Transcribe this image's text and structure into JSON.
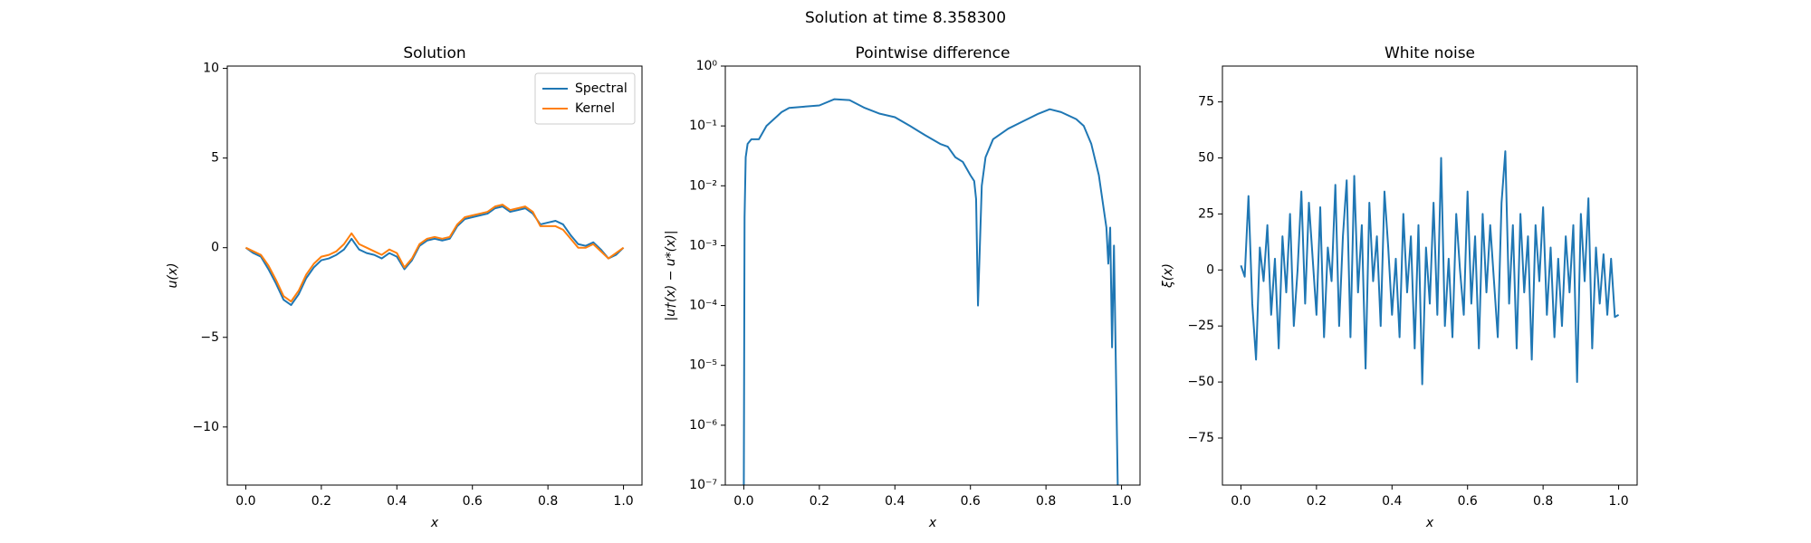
{
  "title": "Solution at time 8.358300",
  "chart_data": [
    {
      "type": "line",
      "title": "Solution",
      "xlabel": "x",
      "ylabel": "u(x)",
      "x": [
        0,
        0.02,
        0.04,
        0.06,
        0.08,
        0.1,
        0.12,
        0.14,
        0.16,
        0.18,
        0.2,
        0.22,
        0.24,
        0.26,
        0.28,
        0.3,
        0.32,
        0.34,
        0.36,
        0.38,
        0.4,
        0.42,
        0.44,
        0.46,
        0.48,
        0.5,
        0.52,
        0.54,
        0.56,
        0.58,
        0.6,
        0.62,
        0.64,
        0.66,
        0.68,
        0.7,
        0.72,
        0.74,
        0.76,
        0.78,
        0.8,
        0.82,
        0.84,
        0.86,
        0.88,
        0.9,
        0.92,
        0.94,
        0.96,
        0.98,
        1.0
      ],
      "series": [
        {
          "name": "Spectral",
          "color": "#1f77b4",
          "values": [
            0,
            -0.3,
            -0.5,
            -1.2,
            -2.0,
            -2.9,
            -3.2,
            -2.6,
            -1.7,
            -1.1,
            -0.7,
            -0.6,
            -0.4,
            -0.1,
            0.5,
            -0.1,
            -0.3,
            -0.4,
            -0.6,
            -0.3,
            -0.5,
            -1.2,
            -0.7,
            0.1,
            0.4,
            0.5,
            0.4,
            0.5,
            1.2,
            1.6,
            1.7,
            1.8,
            1.9,
            2.2,
            2.3,
            2.0,
            2.1,
            2.2,
            1.9,
            1.3,
            1.4,
            1.5,
            1.3,
            0.7,
            0.2,
            0.1,
            0.3,
            -0.1,
            -0.6,
            -0.4,
            0.0
          ]
        },
        {
          "name": "Kernel",
          "color": "#ff7f0e",
          "values": [
            0,
            -0.2,
            -0.4,
            -1.0,
            -1.8,
            -2.7,
            -3.0,
            -2.4,
            -1.5,
            -0.9,
            -0.5,
            -0.4,
            -0.2,
            0.2,
            0.8,
            0.2,
            0.0,
            -0.2,
            -0.4,
            -0.1,
            -0.3,
            -1.1,
            -0.6,
            0.2,
            0.5,
            0.6,
            0.5,
            0.6,
            1.3,
            1.7,
            1.8,
            1.9,
            2.0,
            2.3,
            2.4,
            2.1,
            2.2,
            2.3,
            2.0,
            1.2,
            1.2,
            1.2,
            1.0,
            0.5,
            0.0,
            0.0,
            0.2,
            -0.2,
            -0.6,
            -0.3,
            0.0
          ]
        }
      ],
      "xlim": [
        -0.049,
        1.049
      ],
      "ylim": [
        -13.24,
        10.13
      ],
      "xticks": [
        {
          "value": 0,
          "label": "0.0"
        },
        {
          "value": 0.2,
          "label": "0.2"
        },
        {
          "value": 0.4,
          "label": "0.4"
        },
        {
          "value": 0.6,
          "label": "0.6"
        },
        {
          "value": 0.8,
          "label": "0.8"
        },
        {
          "value": 1,
          "label": "1.0"
        }
      ],
      "yticks": [
        {
          "value": -10,
          "label": "−10"
        },
        {
          "value": -5,
          "label": "−5"
        },
        0,
        5,
        10
      ],
      "legend": "upper right"
    },
    {
      "type": "line",
      "title": "Pointwise difference",
      "xlabel": "x",
      "ylabel": "|u†(x) − u*(x)|",
      "yscale": "log",
      "color": "#1f77b4",
      "x": [
        0.0,
        0.002,
        0.005,
        0.01,
        0.02,
        0.04,
        0.06,
        0.1,
        0.12,
        0.16,
        0.2,
        0.24,
        0.28,
        0.32,
        0.36,
        0.4,
        0.44,
        0.48,
        0.52,
        0.54,
        0.56,
        0.58,
        0.6,
        0.61,
        0.615,
        0.62,
        0.625,
        0.63,
        0.64,
        0.66,
        0.7,
        0.74,
        0.78,
        0.81,
        0.84,
        0.88,
        0.9,
        0.92,
        0.94,
        0.96,
        0.965,
        0.97,
        0.975,
        0.98,
        0.99
      ],
      "values": [
        1e-07,
        0.003,
        0.03,
        0.05,
        0.06,
        0.06,
        0.1,
        0.17,
        0.2,
        0.21,
        0.22,
        0.28,
        0.27,
        0.2,
        0.16,
        0.14,
        0.1,
        0.07,
        0.05,
        0.045,
        0.03,
        0.025,
        0.015,
        0.012,
        0.006,
        0.0001,
        0.001,
        0.01,
        0.03,
        0.06,
        0.09,
        0.12,
        0.16,
        0.19,
        0.17,
        0.13,
        0.1,
        0.05,
        0.015,
        0.002,
        0.0005,
        0.002,
        2e-05,
        0.001,
        1e-07
      ],
      "xlim": [
        -0.049,
        1.049
      ],
      "ylim": [
        1e-07,
        1
      ],
      "xticks": [
        {
          "value": 0,
          "label": "0.0"
        },
        {
          "value": 0.2,
          "label": "0.2"
        },
        {
          "value": 0.4,
          "label": "0.4"
        },
        {
          "value": 0.6,
          "label": "0.6"
        },
        {
          "value": 0.8,
          "label": "0.8"
        },
        {
          "value": 1,
          "label": "1.0"
        }
      ],
      "yticks": [
        {
          "value": 1e-07,
          "label": "10⁻⁷"
        },
        {
          "value": 1e-06,
          "label": "10⁻⁶"
        },
        {
          "value": 1e-05,
          "label": "10⁻⁵"
        },
        {
          "value": 0.0001,
          "label": "10⁻⁴"
        },
        {
          "value": 0.001,
          "label": "10⁻³"
        },
        {
          "value": 0.01,
          "label": "10⁻²"
        },
        {
          "value": 0.1,
          "label": "10⁻¹"
        },
        {
          "value": 1,
          "label": "10⁰"
        }
      ]
    },
    {
      "type": "line",
      "title": "White noise",
      "xlabel": "x",
      "ylabel": "ξ(x)",
      "color": "#1f77b4",
      "x": [
        0,
        0.01,
        0.02,
        0.03,
        0.04,
        0.05,
        0.06,
        0.07,
        0.08,
        0.09,
        0.1,
        0.11,
        0.12,
        0.13,
        0.14,
        0.15,
        0.16,
        0.17,
        0.18,
        0.19,
        0.2,
        0.21,
        0.22,
        0.23,
        0.24,
        0.25,
        0.26,
        0.27,
        0.28,
        0.29,
        0.3,
        0.31,
        0.32,
        0.33,
        0.34,
        0.35,
        0.36,
        0.37,
        0.38,
        0.39,
        0.4,
        0.41,
        0.42,
        0.43,
        0.44,
        0.45,
        0.46,
        0.47,
        0.48,
        0.49,
        0.5,
        0.51,
        0.52,
        0.53,
        0.54,
        0.55,
        0.56,
        0.57,
        0.58,
        0.59,
        0.6,
        0.61,
        0.62,
        0.63,
        0.64,
        0.65,
        0.66,
        0.67,
        0.68,
        0.69,
        0.7,
        0.71,
        0.72,
        0.73,
        0.74,
        0.75,
        0.76,
        0.77,
        0.78,
        0.79,
        0.8,
        0.81,
        0.82,
        0.83,
        0.84,
        0.85,
        0.86,
        0.87,
        0.88,
        0.89,
        0.9,
        0.91,
        0.92,
        0.93,
        0.94,
        0.95,
        0.96,
        0.97,
        0.98,
        0.99,
        1.0
      ],
      "values": [
        2,
        -3,
        33,
        -15,
        -40,
        10,
        -5,
        20,
        -20,
        5,
        -35,
        15,
        -10,
        25,
        -25,
        0,
        35,
        -15,
        30,
        5,
        -20,
        28,
        -30,
        10,
        -5,
        38,
        -25,
        15,
        40,
        -30,
        42,
        -10,
        20,
        -44,
        30,
        -5,
        15,
        -25,
        35,
        10,
        -20,
        5,
        -30,
        25,
        -10,
        15,
        -35,
        20,
        -51,
        10,
        -15,
        30,
        -20,
        50,
        -25,
        5,
        -30,
        25,
        0,
        -20,
        35,
        -15,
        15,
        -35,
        25,
        -10,
        20,
        -5,
        -30,
        30,
        53,
        -15,
        20,
        -35,
        25,
        -10,
        15,
        -40,
        20,
        -5,
        28,
        -20,
        10,
        -30,
        5,
        -25,
        15,
        -10,
        20,
        -50,
        25,
        -5,
        32,
        -35,
        10,
        -15,
        7,
        -20,
        5,
        -21,
        -20
      ],
      "xlim": [
        -0.049,
        1.049
      ],
      "ylim": [
        -96,
        91
      ],
      "xticks": [
        {
          "value": 0,
          "label": "0.0"
        },
        {
          "value": 0.2,
          "label": "0.2"
        },
        {
          "value": 0.4,
          "label": "0.4"
        },
        {
          "value": 0.6,
          "label": "0.6"
        },
        {
          "value": 0.8,
          "label": "0.8"
        },
        {
          "value": 1,
          "label": "1.0"
        }
      ],
      "yticks": [
        {
          "value": -75,
          "label": "−75"
        },
        {
          "value": -50,
          "label": "−50"
        },
        {
          "value": -25,
          "label": "−25"
        },
        0,
        25,
        50,
        75
      ]
    }
  ]
}
